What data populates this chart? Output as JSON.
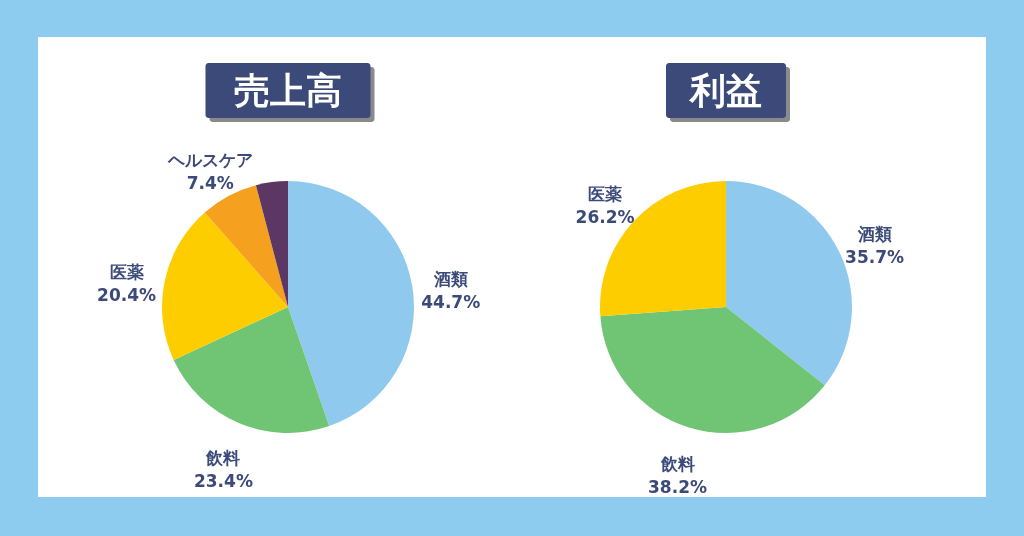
{
  "chart_data": [
    {
      "type": "pie",
      "title": "売上高",
      "categories": [
        "酒類",
        "飲料",
        "医薬",
        "ヘルスケア",
        null
      ],
      "values": [
        44.7,
        23.4,
        20.4,
        7.4,
        4.1
      ],
      "colors": [
        "#8fcaee",
        "#6fc573",
        "#fecd00",
        "#f6a020",
        "#5c3764"
      ],
      "value_labels": [
        "44.7%",
        "23.4%",
        "20.4%",
        "7.4%",
        null
      ]
    },
    {
      "type": "pie",
      "title": "利益",
      "categories": [
        "酒類",
        "飲料",
        "医薬"
      ],
      "values": [
        35.7,
        38.2,
        26.2
      ],
      "colors": [
        "#8fcaee",
        "#6fc573",
        "#fecd00"
      ],
      "value_labels": [
        "35.7%",
        "38.2%",
        "26.2%"
      ]
    }
  ]
}
